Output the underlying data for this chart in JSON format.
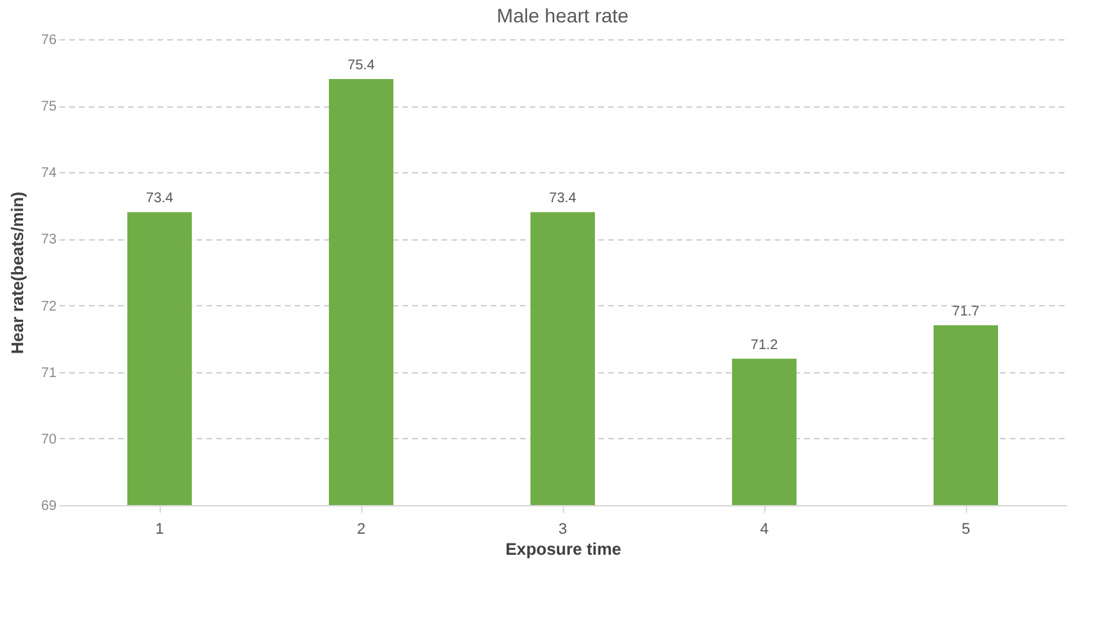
{
  "chart_data": {
    "type": "bar",
    "title": "Male heart rate",
    "xlabel": "Exposure time",
    "ylabel": "Hear rate(beats/min)",
    "categories": [
      "1",
      "2",
      "3",
      "4",
      "5"
    ],
    "values": [
      73.4,
      75.4,
      73.4,
      71.2,
      71.7
    ],
    "color": "#70ad47",
    "ylim": [
      69,
      76
    ],
    "yticks": [
      69,
      70,
      71,
      72,
      73,
      74,
      75,
      76
    ],
    "grid": "y",
    "data_labels": true
  }
}
